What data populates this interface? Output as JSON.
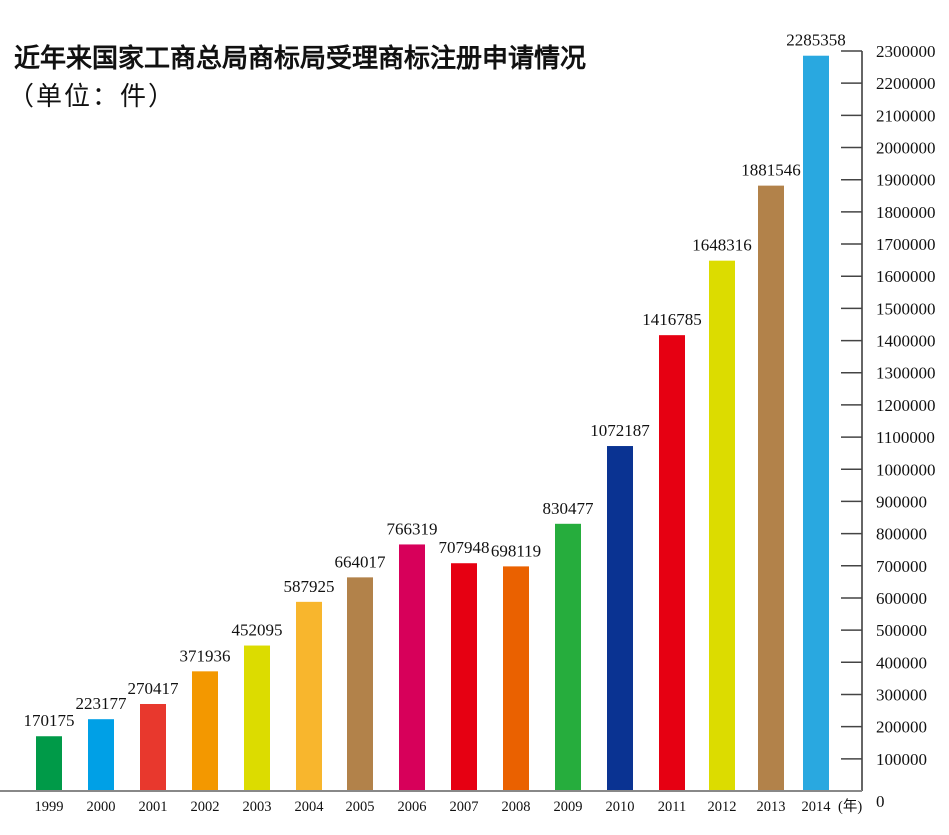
{
  "chart_data": {
    "type": "bar",
    "title": "近年来国家工商总局商标局受理商标注册申请情况",
    "subtitle": "（单位：件）",
    "xlabel": "(年)",
    "ylabel": "",
    "ylim": [
      0,
      2300000
    ],
    "y_ticks": [
      0,
      100000,
      200000,
      300000,
      400000,
      500000,
      600000,
      700000,
      800000,
      900000,
      1000000,
      1100000,
      1200000,
      1300000,
      1400000,
      1500000,
      1600000,
      1700000,
      1800000,
      1900000,
      2000000,
      2100000,
      2200000,
      2300000
    ],
    "y_axis_position": "right",
    "grid": false,
    "legend": "none",
    "categories": [
      "1999",
      "2000",
      "2001",
      "2002",
      "2003",
      "2004",
      "2005",
      "2006",
      "2007",
      "2008",
      "2009",
      "2010",
      "2011",
      "2012",
      "2013",
      "2014"
    ],
    "values": [
      170175,
      223177,
      270417,
      371936,
      452095,
      587925,
      664017,
      766319,
      707948,
      698119,
      830477,
      1072187,
      1416785,
      1648316,
      1881546,
      2285358
    ],
    "colors": [
      "#009a48",
      "#00a0e6",
      "#e8382d",
      "#f39800",
      "#dcdc00",
      "#f8b62d",
      "#b2824a",
      "#d7005a",
      "#e60012",
      "#ea6100",
      "#26ad3d",
      "#0a3392",
      "#e60012",
      "#dcdc00",
      "#b2824a",
      "#29a8e0"
    ]
  }
}
